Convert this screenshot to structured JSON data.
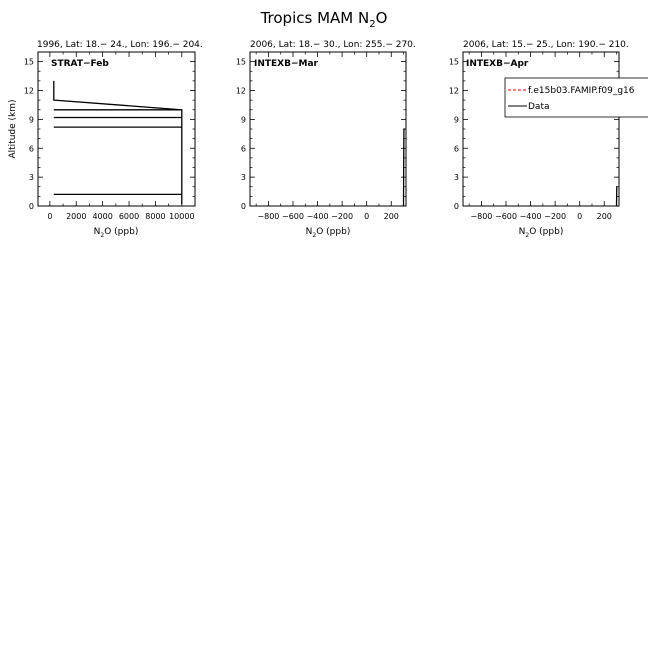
{
  "page_title": "Tropics MAM N",
  "page_title_sub": "2",
  "page_title_tail": "O",
  "legend": {
    "model_label": "f.e15b03.FAMIP.f09_g16",
    "data_label": "Data"
  },
  "colors": {
    "model": "#ff0000",
    "data": "#000000"
  },
  "chart_data": [
    {
      "type": "line",
      "title": "1996, Lat: 18.− 24., Lon: 196.− 204.",
      "panel_label": "STRAT−Feb",
      "xlabel": "N2O (ppb)",
      "ylabel": "Altitude (km)",
      "xlim": [
        -900,
        11000
      ],
      "ylim": [
        0,
        16
      ],
      "xticks": [
        0,
        2000,
        4000,
        6000,
        8000,
        10000
      ],
      "yticks": [
        0,
        3,
        6,
        9,
        12,
        15
      ],
      "series": [
        {
          "name": "Data",
          "x": [
            300,
            300,
            330,
            10000,
            10000
          ],
          "y": [
            13.0,
            11.0,
            11.0,
            10.0,
            0.2
          ]
        },
        {
          "name": "Data",
          "x": [
            300,
            10000
          ],
          "y": [
            10.0,
            10.0
          ]
        },
        {
          "name": "Data",
          "x": [
            300,
            10000
          ],
          "y": [
            9.2,
            9.2
          ]
        },
        {
          "name": "Data",
          "x": [
            300,
            10000
          ],
          "y": [
            8.2,
            8.2
          ]
        },
        {
          "name": "Data",
          "x": [
            300,
            10000
          ],
          "y": [
            1.2,
            1.2
          ]
        }
      ]
    },
    {
      "type": "line",
      "title": "2006, Lat: 18.− 30., Lon: 255.− 270.",
      "panel_label": "INTEXB−Mar",
      "xlabel": "N2O (ppb)",
      "ylabel": "",
      "xlim": [
        -950,
        320
      ],
      "ylim": [
        0,
        16
      ],
      "xticks": [
        -800,
        -600,
        -400,
        -200,
        0,
        200
      ],
      "yticks": [
        0,
        3,
        6,
        9,
        12,
        15
      ],
      "series": [
        {
          "name": "Data",
          "x": [
            300,
            303,
            310
          ],
          "y": [
            0.0,
            8.0,
            8.0
          ]
        }
      ]
    },
    {
      "type": "line",
      "title": "2006, Lat: 15.− 25., Lon: 190.− 210.",
      "panel_label": "INTEXB−Apr",
      "xlabel": "N2O (ppb)",
      "ylabel": "",
      "xlim": [
        -950,
        320
      ],
      "ylim": [
        0,
        16
      ],
      "xticks": [
        -800,
        -600,
        -400,
        -200,
        0,
        200
      ],
      "yticks": [
        0,
        3,
        6,
        9,
        12,
        15
      ],
      "series": [
        {
          "name": "Data",
          "x": [
            300,
            302,
            305
          ],
          "y": [
            0.0,
            2.0,
            2.0
          ]
        }
      ]
    }
  ]
}
